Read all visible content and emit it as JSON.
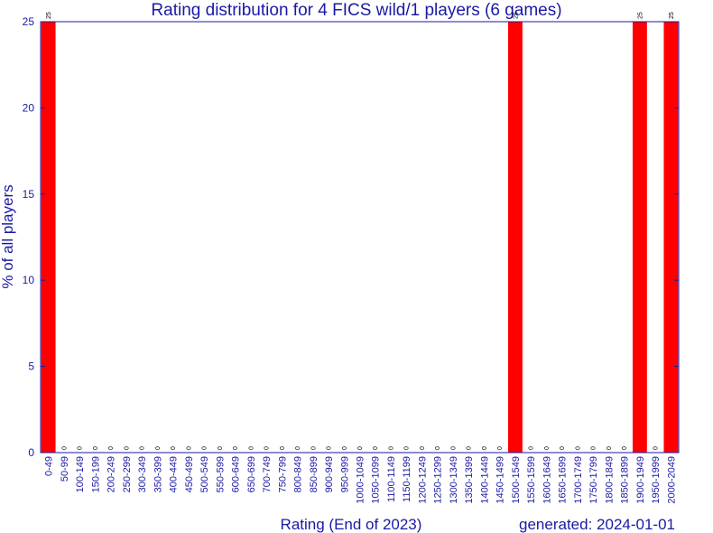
{
  "chart_data": {
    "type": "bar",
    "title": "Rating distribution for 4 FICS wild/1 players (6 games)",
    "xlabel": "Rating (End of 2023)",
    "ylabel": "% of all players",
    "footer": "generated: 2024-01-01",
    "ylim": [
      0,
      25
    ],
    "yticks": [
      0,
      5,
      10,
      15,
      20,
      25
    ],
    "categories": [
      "0-49",
      "50-99",
      "100-149",
      "150-199",
      "200-249",
      "250-299",
      "300-349",
      "350-399",
      "400-449",
      "450-499",
      "500-549",
      "550-599",
      "600-649",
      "650-699",
      "700-749",
      "750-799",
      "800-849",
      "850-899",
      "900-949",
      "950-999",
      "1000-1049",
      "1050-1099",
      "1100-1149",
      "1150-1199",
      "1200-1249",
      "1250-1299",
      "1300-1349",
      "1350-1399",
      "1400-1449",
      "1450-1499",
      "1500-1549",
      "1550-1599",
      "1600-1649",
      "1650-1699",
      "1700-1749",
      "1750-1799",
      "1800-1849",
      "1850-1899",
      "1900-1949",
      "1950-1999",
      "2000-2049"
    ],
    "values": [
      25,
      0,
      0,
      0,
      0,
      0,
      0,
      0,
      0,
      0,
      0,
      0,
      0,
      0,
      0,
      0,
      0,
      0,
      0,
      0,
      0,
      0,
      0,
      0,
      0,
      0,
      0,
      0,
      0,
      0,
      25,
      0,
      0,
      0,
      0,
      0,
      0,
      0,
      25,
      0,
      25
    ],
    "bar_color": "#ff0000",
    "axis_color": "#1a1aa6",
    "grid": false,
    "legend": "none"
  }
}
